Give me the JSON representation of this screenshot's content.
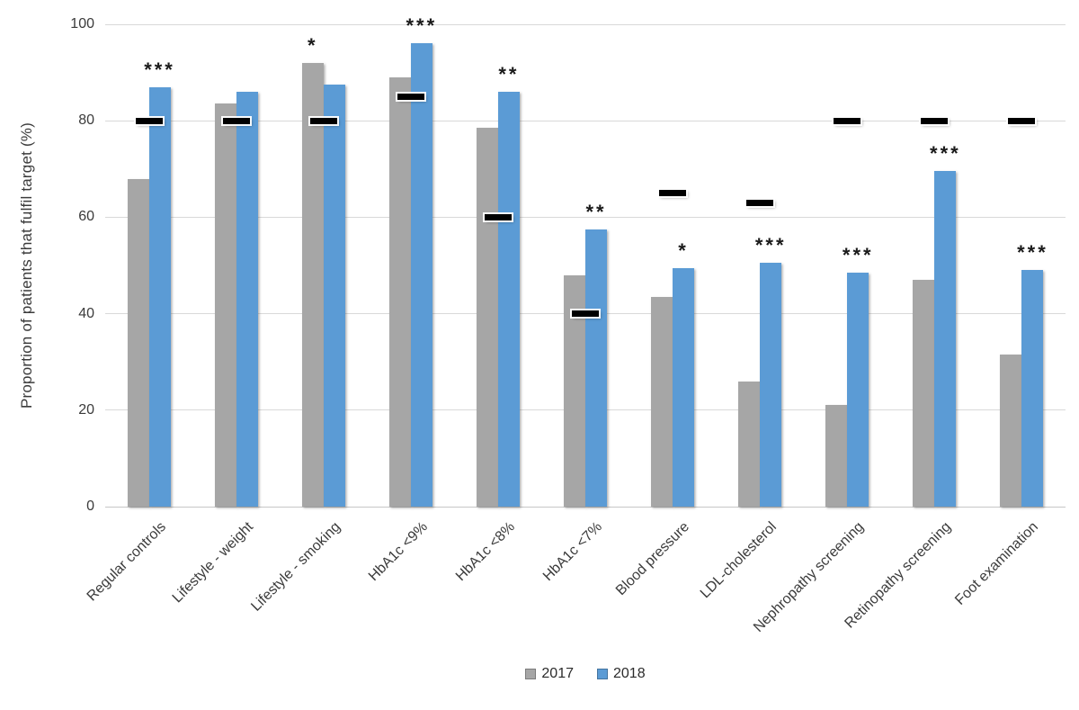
{
  "chart_data": {
    "type": "bar",
    "title": "",
    "ylabel": "Proportion of patients that fulfil target (%)",
    "xlabel": "",
    "ylim": [
      0,
      100
    ],
    "yticks": [
      0,
      20,
      40,
      60,
      80,
      100
    ],
    "grid": true,
    "legend_position": "bottom",
    "grid_color": "#d9d9d9",
    "target_marker_color": "#000000",
    "categories": [
      "Regular controls",
      "Lifestyle - weight",
      "Lifestyle - smoking",
      "HbA1c <9%",
      "HbA1c <8%",
      "HbA1c <7%",
      "Blood pressure",
      "LDL-cholesterol",
      "Nephropathy screening",
      "Retinopathy screening",
      "Foot examination"
    ],
    "series": [
      {
        "name": "2017",
        "color": "#a6a6a6",
        "values": [
          68,
          83.5,
          92,
          89,
          78.5,
          48,
          43.5,
          26,
          21,
          47,
          31.5
        ]
      },
      {
        "name": "2018",
        "color": "#5b9bd5",
        "values": [
          87,
          86,
          87.5,
          96,
          86,
          57.5,
          49.5,
          50.5,
          48.5,
          69.5,
          49
        ]
      }
    ],
    "targets": [
      80,
      80,
      80,
      85,
      60,
      40,
      65,
      63,
      80,
      80,
      80
    ],
    "significance": [
      {
        "label": "***",
        "over": "2018"
      },
      null,
      {
        "label": "*",
        "over": "2017"
      },
      {
        "label": "***",
        "over": "2018"
      },
      {
        "label": "**",
        "over": "2018"
      },
      {
        "label": "**",
        "over": "2018"
      },
      {
        "label": "*",
        "over": "2018"
      },
      {
        "label": "***",
        "over": "2018"
      },
      {
        "label": "***",
        "over": "2018"
      },
      {
        "label": "***",
        "over": "2018"
      },
      {
        "label": "***",
        "over": "2018"
      }
    ]
  }
}
